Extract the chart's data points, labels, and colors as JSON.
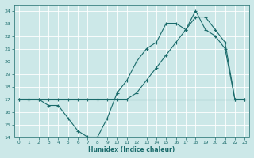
{
  "xlabel": "Humidex (Indice chaleur)",
  "x": [
    0,
    1,
    2,
    3,
    4,
    5,
    6,
    7,
    8,
    9,
    10,
    11,
    12,
    13,
    14,
    15,
    16,
    17,
    18,
    19,
    20,
    21,
    22,
    23
  ],
  "line1_y": [
    17,
    17,
    17,
    16.5,
    16.5,
    15.5,
    14.5,
    14,
    14,
    15.5,
    17.5,
    18.5,
    20,
    21,
    21.5,
    23,
    23,
    22.5,
    24,
    22.5,
    22,
    21,
    17,
    17
  ],
  "line1_markers": [
    0,
    1,
    2,
    3,
    4,
    5,
    6,
    7,
    8,
    9,
    10,
    11,
    12,
    13,
    14,
    15,
    16,
    17,
    18,
    19,
    20,
    21,
    22,
    23
  ],
  "line2_x": [
    0,
    23
  ],
  "line2_y": [
    17,
    17
  ],
  "line3_y": [
    17,
    17,
    17,
    17,
    17,
    17,
    17,
    17,
    17,
    17,
    17,
    17,
    17.5,
    18.5,
    19.5,
    20.5,
    21.5,
    22.5,
    23.5,
    23.5,
    22.5,
    21.5,
    17,
    17
  ],
  "line3_markers": [
    0,
    1,
    2,
    3,
    4,
    5,
    6,
    7,
    8,
    9,
    10,
    11,
    12,
    13,
    14,
    15,
    16,
    17,
    18,
    19,
    20,
    21,
    22,
    23
  ],
  "line_color": "#1a6b6b",
  "bg_color": "#cce8e8",
  "grid_color": "#b0d0d0",
  "ylim": [
    14,
    24.5
  ],
  "xlim": [
    -0.5,
    23.5
  ],
  "yticks": [
    14,
    15,
    16,
    17,
    18,
    19,
    20,
    21,
    22,
    23,
    24
  ],
  "xticks": [
    0,
    1,
    2,
    3,
    4,
    5,
    6,
    7,
    8,
    9,
    10,
    11,
    12,
    13,
    14,
    15,
    16,
    17,
    18,
    19,
    20,
    21,
    22,
    23
  ]
}
